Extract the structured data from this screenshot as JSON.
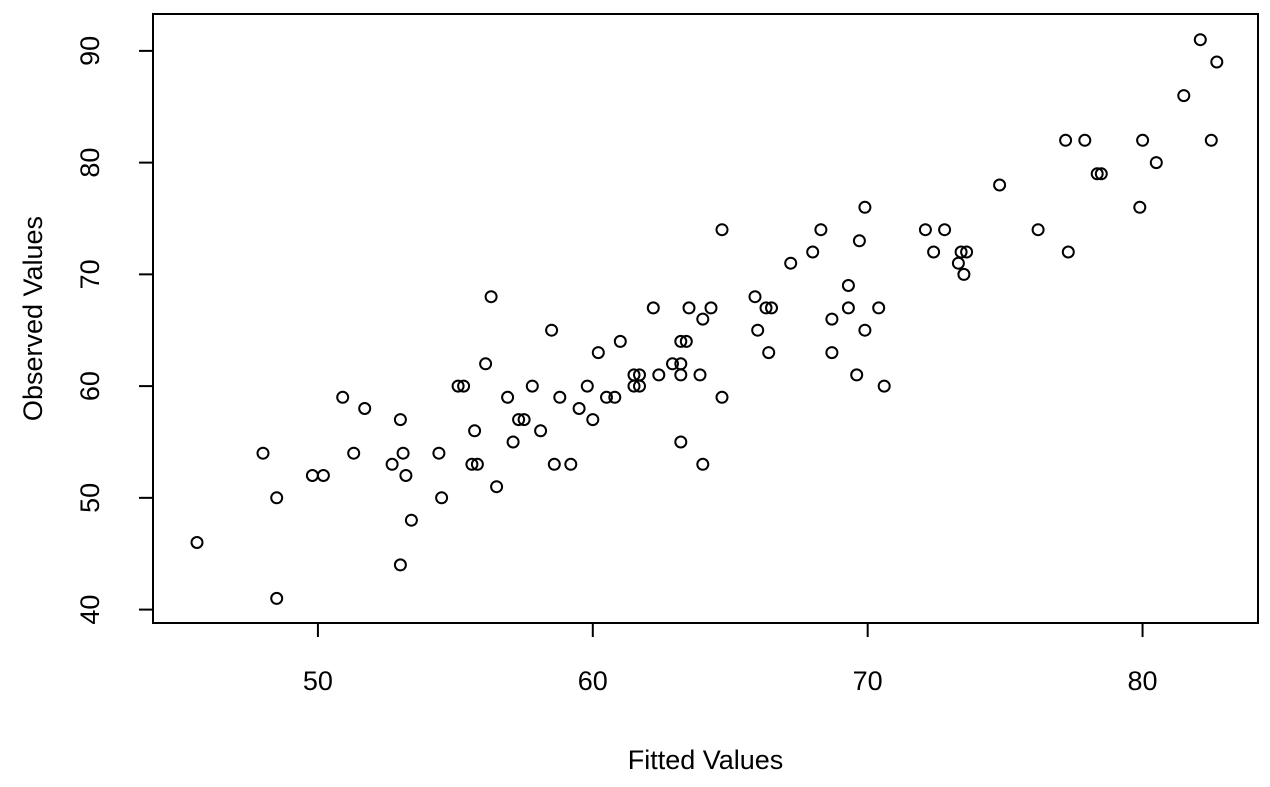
{
  "page": {
    "background_color": "#ffffff",
    "foreground_color": "#000000"
  },
  "chart_data": {
    "type": "scatter",
    "title": "",
    "xlabel": "Fitted Values",
    "ylabel": "Observed Values",
    "xlim": [
      44.0,
      84.2
    ],
    "ylim": [
      38.8,
      93.3
    ],
    "x_ticks": [
      50,
      60,
      70,
      80
    ],
    "y_ticks": [
      40,
      50,
      60,
      70,
      80,
      90
    ],
    "grid": false,
    "legend": null,
    "marker": {
      "shape": "open-circle",
      "radius_px": 5.5,
      "stroke_px": 2,
      "color": "#000000"
    },
    "points": [
      [
        45.6,
        46
      ],
      [
        48.0,
        54
      ],
      [
        48.5,
        41
      ],
      [
        48.5,
        50
      ],
      [
        49.8,
        52
      ],
      [
        50.2,
        52
      ],
      [
        50.9,
        59
      ],
      [
        51.3,
        54
      ],
      [
        51.7,
        58
      ],
      [
        52.7,
        53
      ],
      [
        53.0,
        44
      ],
      [
        53.0,
        57
      ],
      [
        53.1,
        54
      ],
      [
        53.2,
        52
      ],
      [
        53.4,
        48
      ],
      [
        54.4,
        54
      ],
      [
        54.5,
        50
      ],
      [
        55.1,
        60
      ],
      [
        55.3,
        60
      ],
      [
        55.6,
        53
      ],
      [
        55.8,
        53
      ],
      [
        55.7,
        56
      ],
      [
        56.1,
        62
      ],
      [
        56.3,
        68
      ],
      [
        56.5,
        51
      ],
      [
        56.9,
        59
      ],
      [
        57.1,
        55
      ],
      [
        57.3,
        57
      ],
      [
        57.5,
        57
      ],
      [
        57.8,
        60
      ],
      [
        58.1,
        56
      ],
      [
        58.5,
        65
      ],
      [
        58.6,
        53
      ],
      [
        58.8,
        59
      ],
      [
        59.2,
        53
      ],
      [
        59.5,
        58
      ],
      [
        59.8,
        60
      ],
      [
        60.0,
        57
      ],
      [
        60.2,
        63
      ],
      [
        60.5,
        59
      ],
      [
        60.8,
        59
      ],
      [
        61.0,
        64
      ],
      [
        61.5,
        61
      ],
      [
        61.7,
        61
      ],
      [
        61.5,
        60
      ],
      [
        61.7,
        60
      ],
      [
        62.2,
        67
      ],
      [
        62.4,
        61
      ],
      [
        62.9,
        62
      ],
      [
        63.2,
        62
      ],
      [
        63.2,
        61
      ],
      [
        63.2,
        64
      ],
      [
        63.4,
        64
      ],
      [
        63.2,
        55
      ],
      [
        63.5,
        67
      ],
      [
        63.9,
        61
      ],
      [
        64.0,
        53
      ],
      [
        64.0,
        66
      ],
      [
        64.3,
        67
      ],
      [
        64.7,
        74
      ],
      [
        64.7,
        59
      ],
      [
        65.9,
        68
      ],
      [
        66.0,
        65
      ],
      [
        66.3,
        67
      ],
      [
        66.5,
        67
      ],
      [
        66.4,
        63
      ],
      [
        67.2,
        71
      ],
      [
        68.0,
        72
      ],
      [
        68.3,
        74
      ],
      [
        68.7,
        66
      ],
      [
        68.7,
        63
      ],
      [
        69.3,
        69
      ],
      [
        69.3,
        67
      ],
      [
        69.7,
        73
      ],
      [
        69.9,
        76
      ],
      [
        69.9,
        65
      ],
      [
        69.6,
        61
      ],
      [
        70.4,
        67
      ],
      [
        70.6,
        60
      ],
      [
        72.1,
        74
      ],
      [
        72.8,
        74
      ],
      [
        72.4,
        72
      ],
      [
        73.4,
        72
      ],
      [
        73.6,
        72
      ],
      [
        73.3,
        71
      ],
      [
        73.5,
        70
      ],
      [
        74.8,
        78
      ],
      [
        76.2,
        74
      ],
      [
        77.3,
        72
      ],
      [
        77.2,
        82
      ],
      [
        77.9,
        82
      ],
      [
        78.35,
        79
      ],
      [
        78.5,
        79
      ],
      [
        79.9,
        76
      ],
      [
        80.0,
        82
      ],
      [
        80.5,
        80
      ],
      [
        81.5,
        86
      ],
      [
        82.1,
        91
      ],
      [
        82.5,
        82
      ],
      [
        82.7,
        89
      ]
    ]
  }
}
